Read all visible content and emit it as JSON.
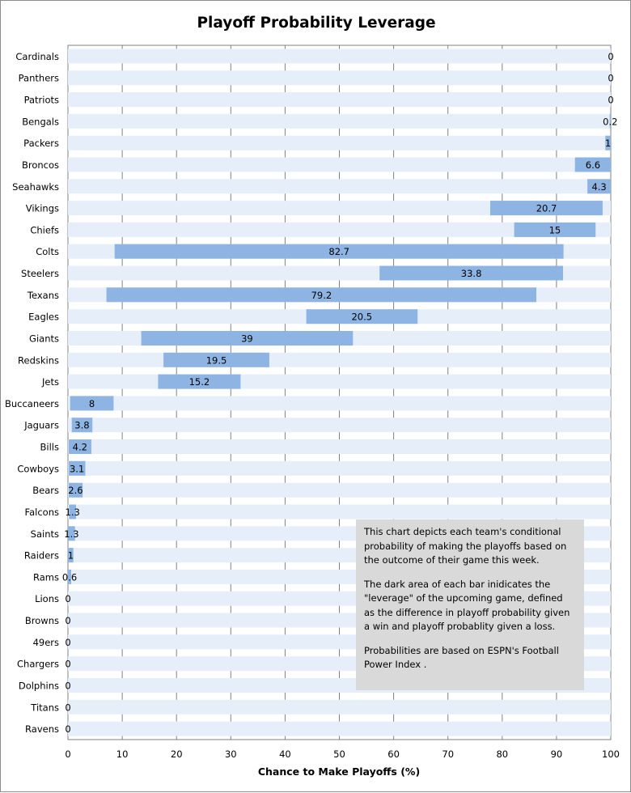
{
  "chart_data": {
    "type": "bar",
    "orientation": "horizontal",
    "title": "Playoff Probability  Leverage",
    "xlabel": "Chance to Make Playoffs (%)",
    "ylabel": "",
    "xlim": [
      0,
      100
    ],
    "xticks": [
      0,
      10,
      20,
      30,
      40,
      50,
      60,
      70,
      80,
      90,
      100
    ],
    "grid": "vertical",
    "legend": "none",
    "colors": {
      "range_bar": "#e6eff9",
      "leverage_bar": "#8db4e2",
      "gridline": "#808080"
    },
    "teams": [
      {
        "team": "Cardinals",
        "low": 100,
        "high": 100,
        "leverage": "0"
      },
      {
        "team": "Panthers",
        "low": 100,
        "high": 100,
        "leverage": "0"
      },
      {
        "team": "Patriots",
        "low": 100,
        "high": 100,
        "leverage": "0"
      },
      {
        "team": "Bengals",
        "low": 99.8,
        "high": 100,
        "leverage": "0.2"
      },
      {
        "team": "Packers",
        "low": 99,
        "high": 100,
        "leverage": "1"
      },
      {
        "team": "Broncos",
        "low": 93.4,
        "high": 100,
        "leverage": "6.6"
      },
      {
        "team": "Seahawks",
        "low": 95.7,
        "high": 100,
        "leverage": "4.3"
      },
      {
        "team": "Vikings",
        "low": 77.8,
        "high": 98.5,
        "leverage": "20.7"
      },
      {
        "team": "Chiefs",
        "low": 82.2,
        "high": 97.2,
        "leverage": "15"
      },
      {
        "team": "Colts",
        "low": 8.6,
        "high": 91.3,
        "leverage": "82.7"
      },
      {
        "team": "Steelers",
        "low": 57.4,
        "high": 91.2,
        "leverage": "33.8"
      },
      {
        "team": "Texans",
        "low": 7.1,
        "high": 86.3,
        "leverage": "79.2"
      },
      {
        "team": "Eagles",
        "low": 43.9,
        "high": 64.4,
        "leverage": "20.5"
      },
      {
        "team": "Giants",
        "low": 13.5,
        "high": 52.5,
        "leverage": "39"
      },
      {
        "team": "Redskins",
        "low": 17.6,
        "high": 37.1,
        "leverage": "19.5"
      },
      {
        "team": "Jets",
        "low": 16.6,
        "high": 31.8,
        "leverage": "15.2"
      },
      {
        "team": "Buccaneers",
        "low": 0.4,
        "high": 8.4,
        "leverage": "8"
      },
      {
        "team": "Jaguars",
        "low": 0.7,
        "high": 4.5,
        "leverage": "3.8"
      },
      {
        "team": "Bills",
        "low": 0.1,
        "high": 4.3,
        "leverage": "4.2"
      },
      {
        "team": "Cowboys",
        "low": 0.1,
        "high": 3.2,
        "leverage": "3.1"
      },
      {
        "team": "Bears",
        "low": 0.1,
        "high": 2.7,
        "leverage": "2.6"
      },
      {
        "team": "Falcons",
        "low": 0.2,
        "high": 1.5,
        "leverage": "1.3"
      },
      {
        "team": "Saints",
        "low": 0,
        "high": 1.3,
        "leverage": "1.3"
      },
      {
        "team": "Raiders",
        "low": 0,
        "high": 1,
        "leverage": "1"
      },
      {
        "team": "Rams",
        "low": 0,
        "high": 0.6,
        "leverage": "0.6"
      },
      {
        "team": "Lions",
        "low": 0,
        "high": 0,
        "leverage": "0"
      },
      {
        "team": "Browns",
        "low": 0,
        "high": 0,
        "leverage": "0"
      },
      {
        "team": "49ers",
        "low": 0,
        "high": 0,
        "leverage": "0"
      },
      {
        "team": "Chargers",
        "low": 0,
        "high": 0,
        "leverage": "0"
      },
      {
        "team": "Dolphins",
        "low": 0,
        "high": 0,
        "leverage": "0"
      },
      {
        "team": "Titans",
        "low": 0,
        "high": 0,
        "leverage": "0"
      },
      {
        "team": "Ravens",
        "low": 0,
        "high": 0,
        "leverage": "0"
      }
    ],
    "annotation": [
      "This chart depicts each team's conditional probability of making the playoffs based on the outcome of their game this week.",
      "The dark area of each bar inidicates the \"leverage\" of the upcoming game, defined as the difference in playoff probability given a win and playoff probablity given a loss.",
      "Probabilities are based on ESPN's Football Power Index ."
    ]
  }
}
